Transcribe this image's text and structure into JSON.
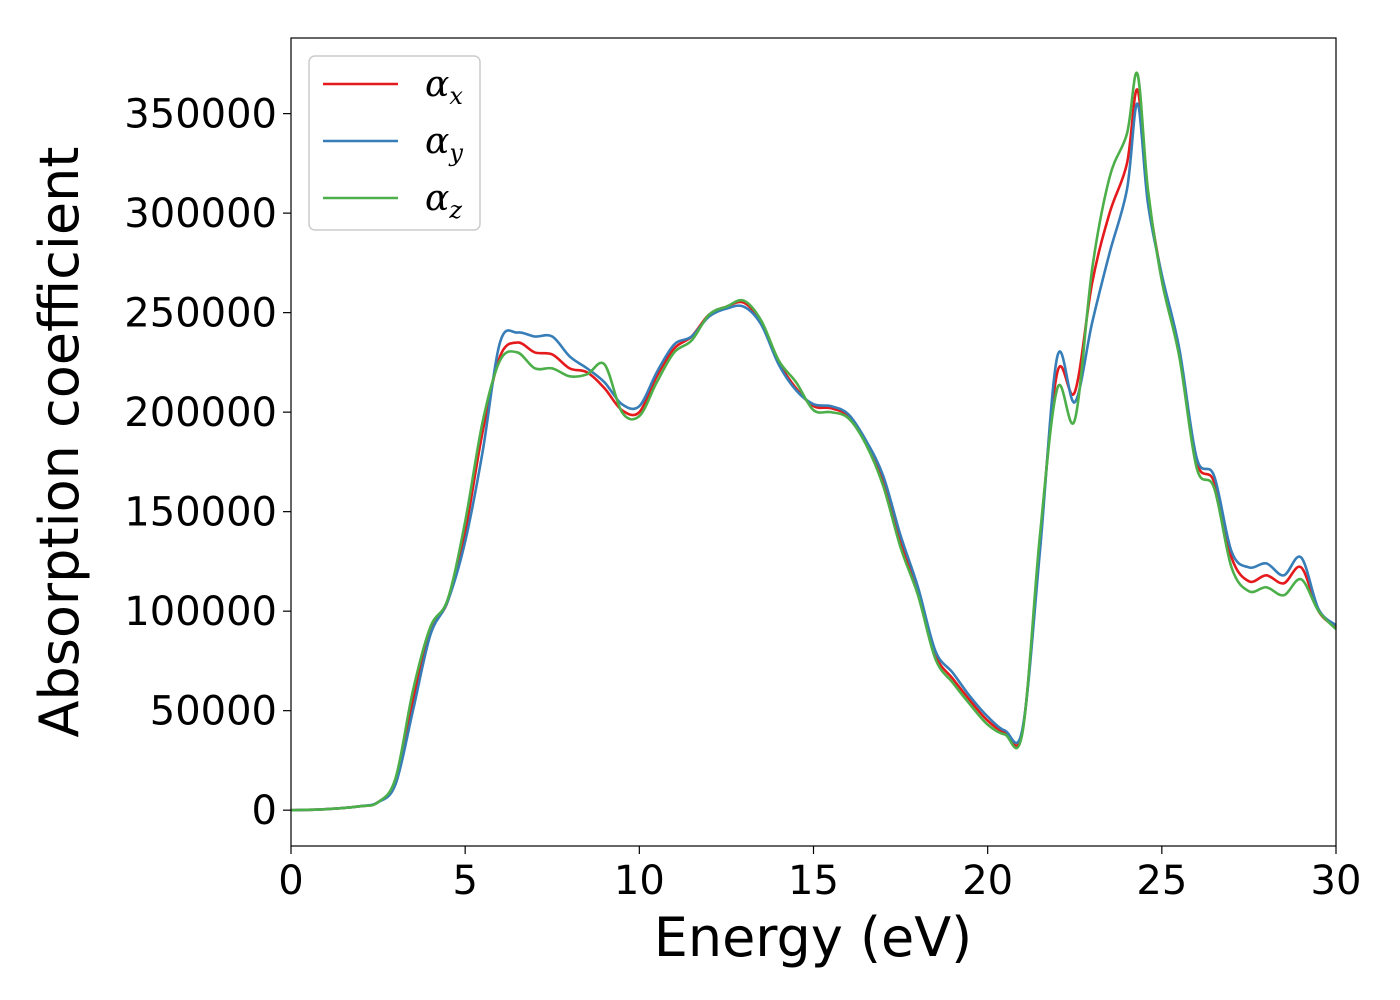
{
  "chart_data": {
    "type": "line",
    "title": "",
    "xlabel": "Energy (eV)",
    "ylabel": "Absorption coefficient",
    "xlim": [
      0,
      30
    ],
    "ylim": [
      -18000,
      388000
    ],
    "xticks": [
      0,
      5,
      10,
      15,
      20,
      25,
      30
    ],
    "yticks": [
      0,
      50000,
      100000,
      150000,
      200000,
      250000,
      300000,
      350000
    ],
    "grid": false,
    "legend_position": "top-left",
    "x": [
      0,
      1,
      2,
      2.5,
      3,
      3.5,
      4,
      4.5,
      5,
      5.5,
      6,
      6.5,
      7,
      7.5,
      8,
      8.5,
      9,
      9.5,
      10,
      10.5,
      11,
      11.5,
      12,
      12.5,
      13,
      13.5,
      14,
      14.5,
      15,
      15.5,
      16,
      16.5,
      17,
      17.5,
      18,
      18.5,
      19,
      19.5,
      20,
      20.5,
      21,
      21.5,
      22,
      22.5,
      23,
      23.5,
      24,
      24.3,
      24.6,
      25,
      25.5,
      26,
      26.5,
      27,
      27.5,
      28,
      28.5,
      29,
      29.5,
      30
    ],
    "series": [
      {
        "name_base": "α",
        "name_sub": "x",
        "color": "#e41a1c",
        "values": [
          0,
          500,
          2000,
          4000,
          15000,
          55000,
          90000,
          105000,
          140000,
          190000,
          228000,
          235000,
          230000,
          229000,
          222000,
          220000,
          212000,
          201000,
          200000,
          218000,
          232000,
          238000,
          249000,
          253000,
          255000,
          245000,
          225000,
          212000,
          203000,
          202000,
          198000,
          185000,
          165000,
          135000,
          110000,
          78000,
          66000,
          55000,
          45000,
          39000,
          40000,
          135000,
          220000,
          210000,
          265000,
          300000,
          325000,
          362000,
          310000,
          268000,
          230000,
          175000,
          165000,
          127000,
          115000,
          118000,
          114000,
          122000,
          100000,
          92000
        ]
      },
      {
        "name_base": "α",
        "name_sub": "y",
        "color": "#377eb8",
        "values": [
          0,
          500,
          2000,
          4000,
          13000,
          50000,
          88000,
          105000,
          135000,
          180000,
          235000,
          240000,
          238000,
          238000,
          228000,
          222000,
          215000,
          204000,
          203000,
          220000,
          234000,
          238000,
          248000,
          252000,
          253000,
          244000,
          224000,
          211000,
          204000,
          203000,
          199000,
          186000,
          168000,
          138000,
          112000,
          80000,
          69000,
          57000,
          47000,
          40000,
          41000,
          130000,
          228000,
          205000,
          245000,
          280000,
          312000,
          355000,
          305000,
          269000,
          232000,
          177000,
          168000,
          130000,
          122000,
          124000,
          118000,
          127000,
          101000,
          93000
        ]
      },
      {
        "name_base": "α",
        "name_sub": "z",
        "color": "#4daf4a",
        "values": [
          0,
          500,
          2000,
          4000,
          16000,
          60000,
          92000,
          106000,
          145000,
          195000,
          226000,
          230000,
          222000,
          222000,
          218000,
          219000,
          224000,
          200000,
          198000,
          215000,
          230000,
          236000,
          249000,
          253000,
          256000,
          246000,
          226000,
          215000,
          201000,
          200000,
          197000,
          184000,
          163000,
          132000,
          108000,
          76000,
          64000,
          53000,
          43000,
          38000,
          39000,
          138000,
          212000,
          196000,
          272000,
          318000,
          340000,
          370000,
          312000,
          266000,
          228000,
          172000,
          162000,
          122000,
          110000,
          112000,
          108000,
          116000,
          100000,
          91000
        ]
      }
    ]
  }
}
